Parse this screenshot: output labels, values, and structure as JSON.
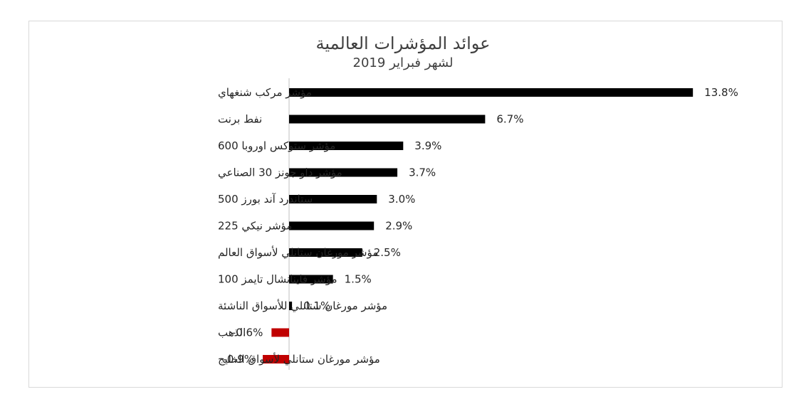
{
  "chart_data": {
    "type": "bar",
    "orientation": "horizontal",
    "title": "عوائد المؤشرات العالمية",
    "subtitle": "لشهر فبراير 2019",
    "categories": [
      "مؤشر مركب شنغهاي",
      "نفط برنت",
      "مؤشر ستوكس اوروبا 600",
      "مؤشر داو جونز 30 الصناعي",
      "ستاندرد آند بورز 500",
      "مؤشر نيكي 225",
      "مؤشر مورغان ستانلي لأسواق العالم",
      "مؤشر فاينانشال تايمز 100",
      "مؤشر مورغان ستانلي للأسواق الناشئة",
      "الذهب",
      "مؤشر مورغان ستانلي لأسواق الخليج"
    ],
    "values": [
      13.8,
      6.7,
      3.9,
      3.7,
      3.0,
      2.9,
      2.5,
      1.5,
      0.1,
      -0.6,
      -0.9
    ],
    "data_labels": [
      "13.8%",
      "6.7%",
      "3.9%",
      "3.7%",
      "3.0%",
      "2.9%",
      "2.5%",
      "1.5%",
      "0.1%",
      "-0.6%",
      "-0.9%"
    ],
    "xlim": [
      -0.9,
      13.8
    ],
    "grid": false,
    "legend": "none",
    "colors": {
      "positive": "#000000",
      "negative": "#c00000",
      "axis": "#bfbfbf"
    }
  }
}
